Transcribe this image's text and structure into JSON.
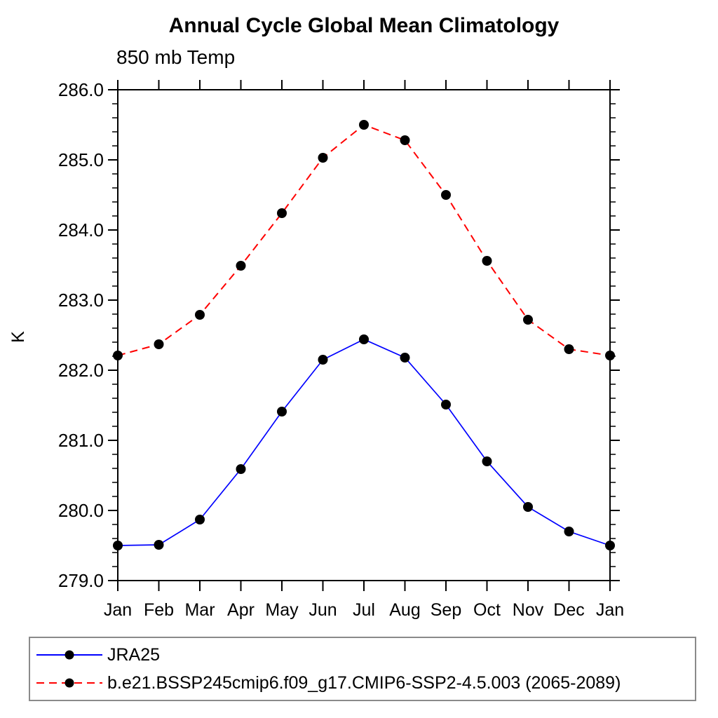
{
  "chart_data": {
    "type": "line",
    "title": "Annual Cycle Global Mean Climatology",
    "subtitle": "850 mb Temp",
    "ylabel": "K",
    "xlabel": "",
    "categories": [
      "Jan",
      "Feb",
      "Mar",
      "Apr",
      "May",
      "Jun",
      "Jul",
      "Aug",
      "Sep",
      "Oct",
      "Nov",
      "Dec",
      "Jan"
    ],
    "ylim": [
      279.0,
      286.0
    ],
    "ytick_interval": 1.0,
    "yminor_interval": 0.2,
    "ytick_labels": [
      "279.0",
      "280.0",
      "281.0",
      "282.0",
      "283.0",
      "284.0",
      "285.0",
      "286.0"
    ],
    "grid": false,
    "legend_position": "bottom-left",
    "axis_color": "#000000",
    "legend_border_color": "#8a8a8a",
    "series": [
      {
        "name": "JRA25",
        "color": "#0000ff",
        "line_style": "solid",
        "marker": "filled-circle",
        "marker_color": "#000000",
        "values": [
          279.5,
          279.51,
          279.87,
          280.59,
          281.41,
          282.15,
          282.44,
          282.18,
          281.51,
          280.7,
          280.05,
          279.7,
          279.5
        ]
      },
      {
        "name": "b.e21.BSSP245cmip6.f09_g17.CMIP6-SSP2-4.5.003 (2065-2089)",
        "color": "#ff0000",
        "line_style": "dashed",
        "marker": "filled-circle",
        "marker_color": "#000000",
        "values": [
          282.21,
          282.37,
          282.79,
          283.49,
          284.24,
          285.03,
          285.5,
          285.28,
          284.5,
          283.56,
          282.72,
          282.3,
          282.21
        ]
      }
    ]
  }
}
